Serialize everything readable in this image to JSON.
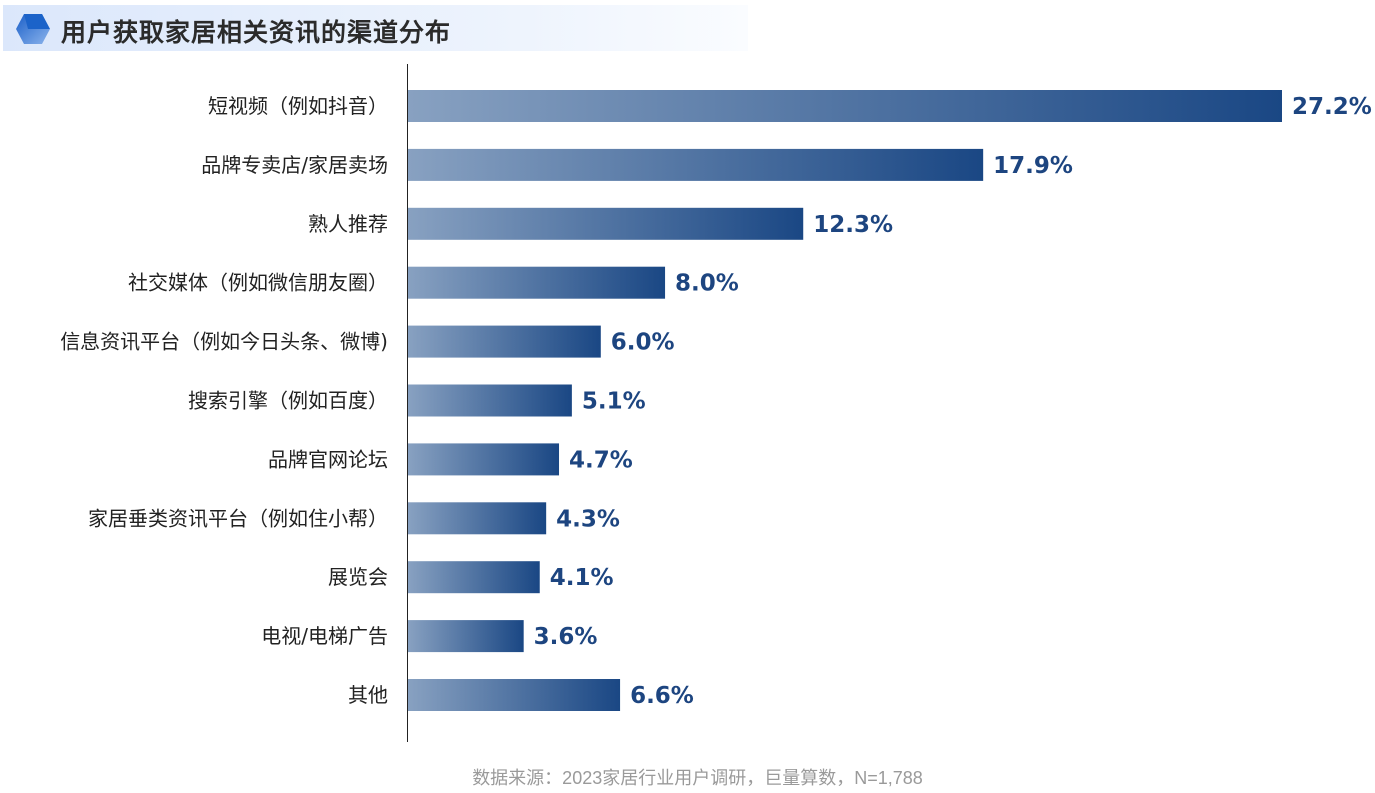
{
  "header": {
    "title": "用户获取家居相关资讯的渠道分布"
  },
  "footer": {
    "source": "数据来源：2023家居行业用户调研，巨量算数，N=1,788"
  },
  "colors": {
    "bar_start": "#88a1c1",
    "bar_end": "#1a4784",
    "label": "#1d4580"
  },
  "chart_data": {
    "type": "bar",
    "orientation": "horizontal",
    "title": "用户获取家居相关资讯的渠道分布",
    "categories": [
      "短视频（例如抖音）",
      "品牌专卖店/家居卖场",
      "熟人推荐",
      "社交媒体（例如微信朋友圈）",
      "信息资讯平台（例如今日头条、微博)",
      "搜索引擎（例如百度）",
      "品牌官网论坛",
      "家居垂类资讯平台（例如住小帮）",
      "展览会",
      "电视/电梯广告",
      "其他"
    ],
    "values": [
      27.2,
      17.9,
      12.3,
      8.0,
      6.0,
      5.1,
      4.7,
      4.3,
      4.1,
      3.6,
      6.6
    ],
    "value_labels": [
      "27.2%",
      "17.9%",
      "12.3%",
      "8.0%",
      "6.0%",
      "5.1%",
      "4.7%",
      "4.3%",
      "4.1%",
      "3.6%",
      "6.6%"
    ],
    "unit": "%",
    "xlim": [
      0,
      27.2
    ],
    "grid": false
  }
}
